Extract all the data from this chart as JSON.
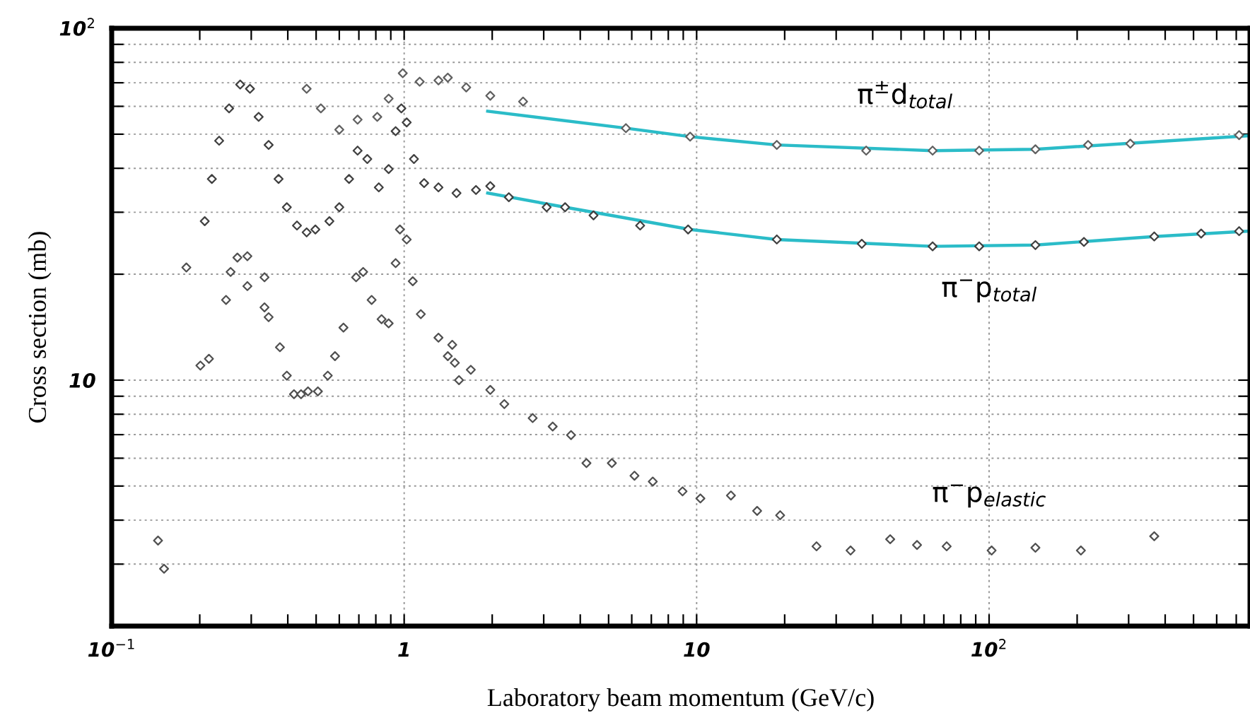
{
  "chart_data": {
    "type": "scatter",
    "xlabel": "Laboratory beam momentum (GeV/c)",
    "ylabel": "Cross section (mb)",
    "log": "xy",
    "grid": true,
    "marker": "diamond",
    "xlim": [
      0.1,
      780
    ],
    "ylim": [
      2,
      100
    ],
    "xticks": [
      {
        "value": 0.1,
        "label": "10$^{−1}$"
      },
      {
        "value": 0.2,
        "label": null
      },
      {
        "value": 0.3,
        "label": null
      },
      {
        "value": 0.4,
        "label": null
      },
      {
        "value": 0.5,
        "label": null
      },
      {
        "value": 0.6,
        "label": null
      },
      {
        "value": 0.7,
        "label": null
      },
      {
        "value": 0.8,
        "label": null
      },
      {
        "value": 0.9,
        "label": null
      },
      1,
      {
        "value": 2,
        "label": null
      },
      {
        "value": 3,
        "label": null
      },
      {
        "value": 4,
        "label": null
      },
      {
        "value": 5,
        "label": null
      },
      {
        "value": 6,
        "label": null
      },
      {
        "value": 7,
        "label": null
      },
      {
        "value": 8,
        "label": null
      },
      {
        "value": 9,
        "label": null
      },
      10,
      {
        "value": 20,
        "label": null
      },
      {
        "value": 30,
        "label": null
      },
      {
        "value": 40,
        "label": null
      },
      {
        "value": 50,
        "label": null
      },
      {
        "value": 60,
        "label": null
      },
      {
        "value": 70,
        "label": null
      },
      {
        "value": 80,
        "label": null
      },
      {
        "value": 90,
        "label": null
      },
      {
        "value": 100,
        "label": "10$^{2}$"
      },
      {
        "value": 200,
        "label": null
      },
      {
        "value": 300,
        "label": null
      },
      {
        "value": 400,
        "label": null
      },
      {
        "value": 500,
        "label": null
      },
      {
        "value": 600,
        "label": null
      },
      {
        "value": 700,
        "label": null
      }
    ],
    "yticks": [
      {
        "value": 2,
        "label": null
      },
      {
        "value": 3,
        "label": null
      },
      {
        "value": 4,
        "label": null
      },
      {
        "value": 5,
        "label": null
      },
      {
        "value": 6,
        "label": null
      },
      {
        "value": 7,
        "label": null
      },
      {
        "value": 8,
        "label": null
      },
      {
        "value": 9,
        "label": null
      },
      10,
      {
        "value": 20,
        "label": null
      },
      {
        "value": 30,
        "label": null
      },
      {
        "value": 40,
        "label": null
      },
      {
        "value": 50,
        "label": null
      },
      {
        "value": 60,
        "label": null
      },
      {
        "value": 70,
        "label": null
      },
      {
        "value": 80,
        "label": null
      },
      {
        "value": 90,
        "label": null
      },
      {
        "value": 100,
        "label": "10$^{2}$"
      }
    ],
    "series": [
      {
        "name": "π$^{±}$d$_{total}$",
        "color": "#606060",
        "x": [
          0.464,
          0.519,
          0.6,
          0.693,
          0.809,
          0.885,
          0.989,
          1.13,
          1.31,
          1.41,
          1.63,
          1.97,
          2.55,
          5.73,
          9.5,
          18.8,
          38.0,
          64.1,
          92.5,
          144,
          218,
          304,
          716
        ],
        "values": [
          67.3,
          59.2,
          51.5,
          55.0,
          56.0,
          63.1,
          74.5,
          70.5,
          71.1,
          72.4,
          67.9,
          64.3,
          61.9,
          52.0,
          49.2,
          46.6,
          44.9,
          44.9,
          44.9,
          45.3,
          46.6,
          47.0,
          49.7
        ]
      },
      {
        "type": "line",
        "marker": "none",
        "color": "#2bbcc8",
        "x": [
          1.93,
          5.73,
          9.5,
          18.8,
          64.1,
          144,
          770
        ],
        "values": [
          58.1,
          52.0,
          49.2,
          46.6,
          44.9,
          45.3,
          49.5
        ]
      },
      {
        "name": "π$^{−}$p$_{total}$",
        "color": "#404040",
        "x": [
          0.208,
          0.22,
          0.233,
          0.252,
          0.275,
          0.297,
          0.318,
          0.344,
          0.372,
          0.397,
          0.43,
          0.464,
          0.497,
          0.555,
          0.6,
          0.648,
          0.693,
          0.748,
          0.819,
          0.885,
          0.935,
          0.978,
          1.02,
          1.08,
          1.17,
          1.31,
          1.51,
          1.76,
          1.97,
          2.28,
          3.07,
          3.55,
          4.44,
          6.41,
          9.35,
          18.8,
          36.7,
          64.1,
          92.5,
          144,
          211,
          367,
          531,
          716
        ],
        "values": [
          28.3,
          37.3,
          47.9,
          59.2,
          69.2,
          67.3,
          56.0,
          46.6,
          37.3,
          31.0,
          27.5,
          26.3,
          26.8,
          28.3,
          31.0,
          37.3,
          44.9,
          42.5,
          35.3,
          39.8,
          51.0,
          59.2,
          54.0,
          42.5,
          36.3,
          35.3,
          34.0,
          34.7,
          35.6,
          33.1,
          31.0,
          31.0,
          29.4,
          27.5,
          26.8,
          25.1,
          24.4,
          24.0,
          24.0,
          24.2,
          24.7,
          25.6,
          26.1,
          26.5
        ]
      },
      {
        "type": "line",
        "marker": "none",
        "color": "#2bbcc8",
        "x": [
          1.93,
          3.55,
          9.5,
          18.8,
          64.1,
          144,
          367,
          770
        ],
        "values": [
          34.0,
          31.0,
          26.8,
          25.1,
          24.0,
          24.2,
          25.6,
          26.5
        ]
      },
      {
        "name": "π$^{−}$p$_{elastic}$",
        "color": "#505050",
        "x": [
          0.144,
          0.151,
          0.18,
          0.201,
          0.215,
          0.246,
          0.255,
          0.269,
          0.291,
          0.291,
          0.333,
          0.333,
          0.344,
          0.376,
          0.397,
          0.42,
          0.444,
          0.469,
          0.507,
          0.548,
          0.58,
          0.62,
          0.685,
          0.724,
          0.774,
          0.837,
          0.885,
          0.935,
          0.967,
          1.02,
          1.07,
          1.14,
          1.31,
          1.41,
          1.46,
          1.49,
          1.54,
          1.69,
          1.97,
          2.2,
          2.75,
          3.22,
          3.72,
          4.2,
          5.13,
          6.13,
          7.08,
          8.95,
          10.3,
          13.1,
          16.1,
          19.3,
          25.7,
          33.6,
          45.9,
          56.7,
          71.6,
          102,
          144,
          206,
          367
        ],
        "values": [
          3.5,
          2.91,
          20.9,
          11.0,
          11.5,
          16.9,
          20.3,
          22.3,
          22.5,
          18.5,
          19.6,
          16.1,
          15.1,
          12.4,
          10.3,
          9.12,
          9.12,
          9.29,
          9.29,
          10.3,
          11.7,
          14.1,
          19.6,
          20.3,
          16.9,
          14.9,
          14.5,
          21.5,
          26.8,
          25.1,
          19.1,
          15.4,
          13.2,
          11.7,
          12.6,
          11.2,
          10.0,
          10.7,
          9.38,
          8.55,
          7.8,
          7.38,
          6.98,
          5.81,
          5.81,
          5.35,
          5.15,
          4.83,
          4.61,
          4.7,
          4.25,
          4.13,
          3.37,
          3.28,
          3.53,
          3.4,
          3.37,
          3.28,
          3.34,
          3.28,
          3.6
        ]
      }
    ]
  }
}
